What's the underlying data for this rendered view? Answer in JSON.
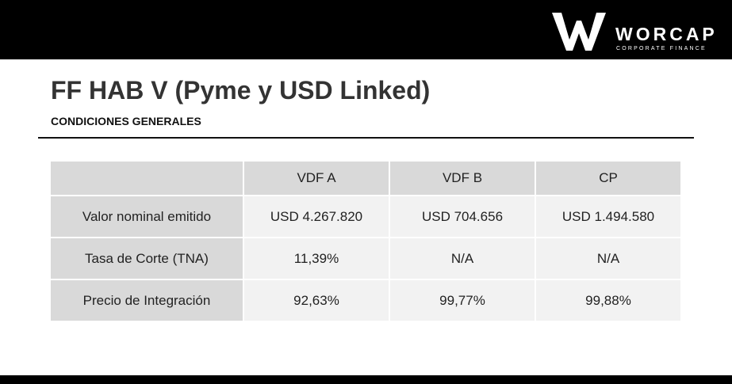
{
  "header": {
    "logo_text": "WORCAP",
    "logo_subtitle": "CORPORATE FINANCE"
  },
  "title": "FF HAB V (Pyme y USD Linked)",
  "subtitle": "CONDICIONES GENERALES",
  "table": {
    "columns": [
      "VDF A",
      "VDF B",
      "CP"
    ],
    "rows": [
      {
        "label": "Valor nominal emitido",
        "values": [
          "USD 4.267.820",
          "USD 704.656",
          "USD 1.494.580"
        ]
      },
      {
        "label": "Tasa de Corte (TNA)",
        "values": [
          "11,39%",
          "N/A",
          "N/A"
        ]
      },
      {
        "label": "Precio de Integración",
        "values": [
          "92,63%",
          "99,77%",
          "99,88%"
        ]
      }
    ]
  }
}
